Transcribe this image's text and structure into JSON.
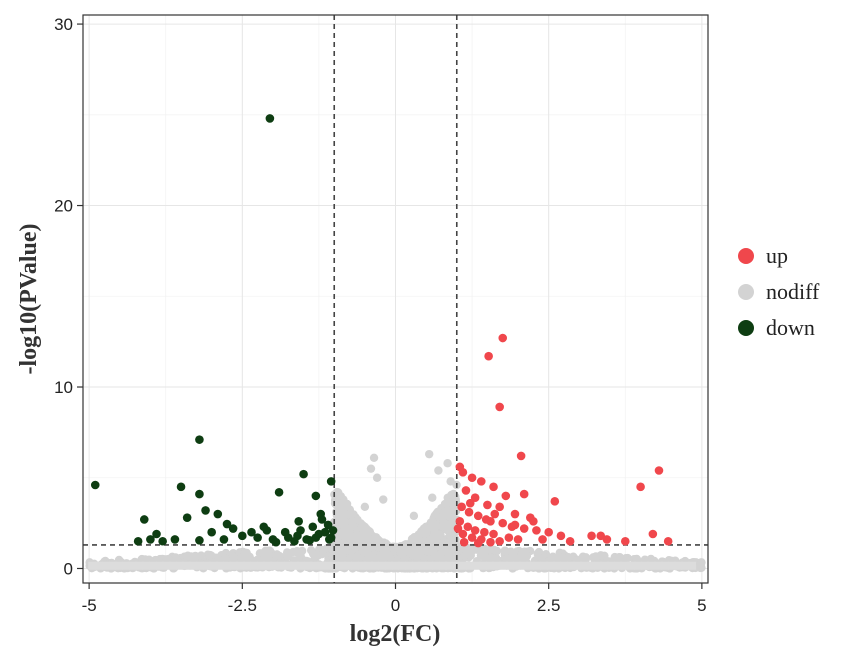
{
  "chart_data": {
    "type": "scatter",
    "title": "",
    "xlabel": "log2(FC)",
    "ylabel": "-log10(PValue)",
    "xlim": [
      -5.1,
      5.1
    ],
    "ylim": [
      -0.8,
      30.5
    ],
    "x_ticks": [
      -5,
      -2.5,
      0,
      2.5,
      5
    ],
    "x_tick_labels": [
      "-5",
      "-2.5",
      "0",
      "2.5",
      "5"
    ],
    "y_ticks": [
      0,
      10,
      20,
      30
    ],
    "y_tick_labels": [
      "0",
      "10",
      "20",
      "30"
    ],
    "grid": true,
    "legend_position": "right",
    "thresholds": {
      "fc_lines": [
        -1,
        1
      ],
      "pvalue_line": 1.3
    },
    "series": [
      {
        "name": "up",
        "color": "#f0474c",
        "points": [
          [
            1.52,
            11.7
          ],
          [
            1.75,
            12.7
          ],
          [
            1.7,
            8.9
          ],
          [
            2.05,
            6.2
          ],
          [
            4.3,
            5.4
          ],
          [
            4.0,
            4.5
          ],
          [
            1.05,
            5.6
          ],
          [
            1.1,
            5.3
          ],
          [
            1.25,
            5.0
          ],
          [
            1.4,
            4.8
          ],
          [
            1.6,
            4.5
          ],
          [
            1.8,
            4.0
          ],
          [
            2.1,
            4.1
          ],
          [
            2.6,
            3.7
          ],
          [
            1.15,
            4.3
          ],
          [
            1.3,
            3.9
          ],
          [
            1.5,
            3.5
          ],
          [
            1.7,
            3.4
          ],
          [
            1.95,
            3.0
          ],
          [
            2.2,
            2.8
          ],
          [
            1.08,
            3.4
          ],
          [
            1.2,
            3.1
          ],
          [
            1.35,
            2.9
          ],
          [
            1.55,
            2.6
          ],
          [
            1.75,
            2.5
          ],
          [
            1.9,
            2.3
          ],
          [
            2.1,
            2.2
          ],
          [
            2.3,
            2.1
          ],
          [
            2.5,
            2.0
          ],
          [
            2.7,
            1.8
          ],
          [
            1.05,
            2.6
          ],
          [
            1.18,
            2.3
          ],
          [
            1.3,
            2.1
          ],
          [
            1.45,
            2.0
          ],
          [
            1.6,
            1.9
          ],
          [
            1.85,
            1.7
          ],
          [
            2.0,
            1.6
          ],
          [
            1.1,
            1.9
          ],
          [
            1.25,
            1.7
          ],
          [
            1.4,
            1.6
          ],
          [
            1.7,
            1.5
          ],
          [
            2.4,
            1.6
          ],
          [
            2.85,
            1.5
          ],
          [
            3.2,
            1.8
          ],
          [
            3.35,
            1.8
          ],
          [
            3.45,
            1.6
          ],
          [
            3.75,
            1.5
          ],
          [
            4.2,
            1.9
          ],
          [
            4.45,
            1.5
          ],
          [
            1.12,
            1.45
          ],
          [
            1.35,
            1.4
          ],
          [
            1.55,
            1.45
          ],
          [
            1.95,
            2.4
          ],
          [
            2.25,
            2.6
          ],
          [
            1.22,
            3.6
          ],
          [
            1.62,
            3.0
          ],
          [
            1.02,
            2.2
          ],
          [
            1.48,
            2.7
          ]
        ]
      },
      {
        "name": "nodiff",
        "color": "#d3d3d3",
        "points": []
      },
      {
        "name": "down",
        "color": "#0e3d12",
        "points": [
          [
            -2.05,
            24.8
          ],
          [
            -3.2,
            7.1
          ],
          [
            -4.9,
            4.6
          ],
          [
            -3.5,
            4.5
          ],
          [
            -3.2,
            4.1
          ],
          [
            -1.5,
            5.2
          ],
          [
            -1.05,
            4.8
          ],
          [
            -1.9,
            4.2
          ],
          [
            -1.3,
            4.0
          ],
          [
            -4.1,
            2.7
          ],
          [
            -3.4,
            2.8
          ],
          [
            -3.1,
            3.2
          ],
          [
            -2.9,
            3.0
          ],
          [
            -2.65,
            2.2
          ],
          [
            -2.35,
            2.0
          ],
          [
            -2.1,
            2.1
          ],
          [
            -1.8,
            2.0
          ],
          [
            -1.55,
            2.1
          ],
          [
            -1.35,
            2.3
          ],
          [
            -1.2,
            2.7
          ],
          [
            -1.1,
            2.4
          ],
          [
            -3.9,
            1.9
          ],
          [
            -3.6,
            1.6
          ],
          [
            -3.0,
            2.0
          ],
          [
            -2.5,
            1.8
          ],
          [
            -2.25,
            1.7
          ],
          [
            -2.0,
            1.6
          ],
          [
            -1.75,
            1.7
          ],
          [
            -1.6,
            1.8
          ],
          [
            -1.45,
            1.6
          ],
          [
            -1.25,
            1.9
          ],
          [
            -1.15,
            2.0
          ],
          [
            -1.05,
            1.7
          ],
          [
            -4.2,
            1.5
          ],
          [
            -3.8,
            1.5
          ],
          [
            -3.2,
            1.55
          ],
          [
            -2.8,
            1.6
          ],
          [
            -1.95,
            1.45
          ],
          [
            -1.65,
            1.5
          ],
          [
            -1.4,
            1.55
          ],
          [
            -1.3,
            1.7
          ],
          [
            -1.08,
            1.6
          ],
          [
            -1.02,
            2.1
          ],
          [
            -2.15,
            2.3
          ],
          [
            -1.58,
            2.6
          ],
          [
            -1.22,
            3.0
          ],
          [
            -2.75,
            2.45
          ],
          [
            -4.0,
            1.6
          ]
        ]
      }
    ]
  }
}
